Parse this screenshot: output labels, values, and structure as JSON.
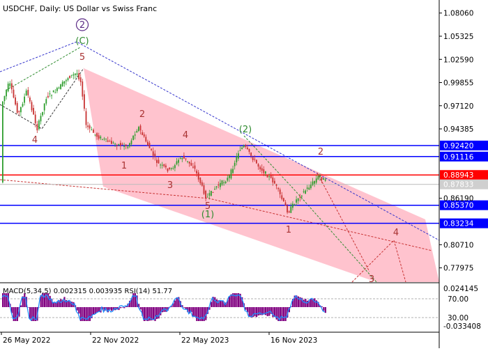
{
  "window": {
    "title": "USDCHF, Daily:  US Dollar vs Swiss Franc"
  },
  "chart_data": [
    {
      "type": "candlestick",
      "symbol": "USDCHF",
      "timeframe": "Daily",
      "instrument_name": "US Dollar vs Swiss Franc",
      "ylim": [
        0.763,
        1.096
      ],
      "price_ticks": [
        "1.08060",
        "1.05325",
        "1.02590",
        "0.99855",
        "0.97120",
        "0.94385",
        "0.86190",
        "0.80710",
        "0.77975"
      ],
      "x_tick_labels": [
        "26 May 2022",
        "22 Nov 2022",
        "22 May 2023",
        "16 Nov 2023"
      ],
      "current_price": "0.87833",
      "horizontal_levels": [
        {
          "label": "0.92420",
          "value": 0.9242,
          "color": "#0000ff"
        },
        {
          "label": "0.91116",
          "value": 0.91116,
          "color": "#0000ff"
        },
        {
          "label": "0.88943",
          "value": 0.88943,
          "color": "#ff0000"
        },
        {
          "label": "0.85370",
          "value": 0.8537,
          "color": "#0000ff"
        },
        {
          "label": "0.83234",
          "value": 0.83234,
          "color": "#0000ff"
        }
      ],
      "wave_labels": [
        {
          "text": "2",
          "color": "#5b2a86",
          "circled": true
        },
        {
          "text": "(C)",
          "color": "#2e8b2e"
        },
        {
          "text": "5",
          "color": "#a83232"
        },
        {
          "text": "4",
          "color": "#a83232"
        },
        {
          "text": "2",
          "color": "#a83232"
        },
        {
          "text": "1",
          "color": "#a83232"
        },
        {
          "text": "4",
          "color": "#a83232"
        },
        {
          "text": "3",
          "color": "#a83232"
        },
        {
          "text": "(2)",
          "color": "#2e8b2e"
        },
        {
          "text": "5",
          "color": "#a83232"
        },
        {
          "text": "(1)",
          "color": "#2e8b2e"
        },
        {
          "text": "2",
          "color": "#a83232"
        },
        {
          "text": "1",
          "color": "#a83232"
        },
        {
          "text": "4",
          "color": "#a83232"
        },
        {
          "text": "3",
          "color": "#a83232"
        }
      ],
      "channel_color": "#ffc0cb",
      "bull_color": "#2e9e2e",
      "bear_color": "#c83232"
    },
    {
      "type": "histogram",
      "indicator_label": "MACD(5,34,5) 0.002315 0.003935 RSI(14) 51.77",
      "macd_ticks": [
        "0.024145",
        "-0.033408"
      ],
      "rsi_ticks": [
        "70.00",
        "30.00"
      ],
      "histogram_color": "#800080",
      "rsi_color": "#1e90ff"
    }
  ]
}
